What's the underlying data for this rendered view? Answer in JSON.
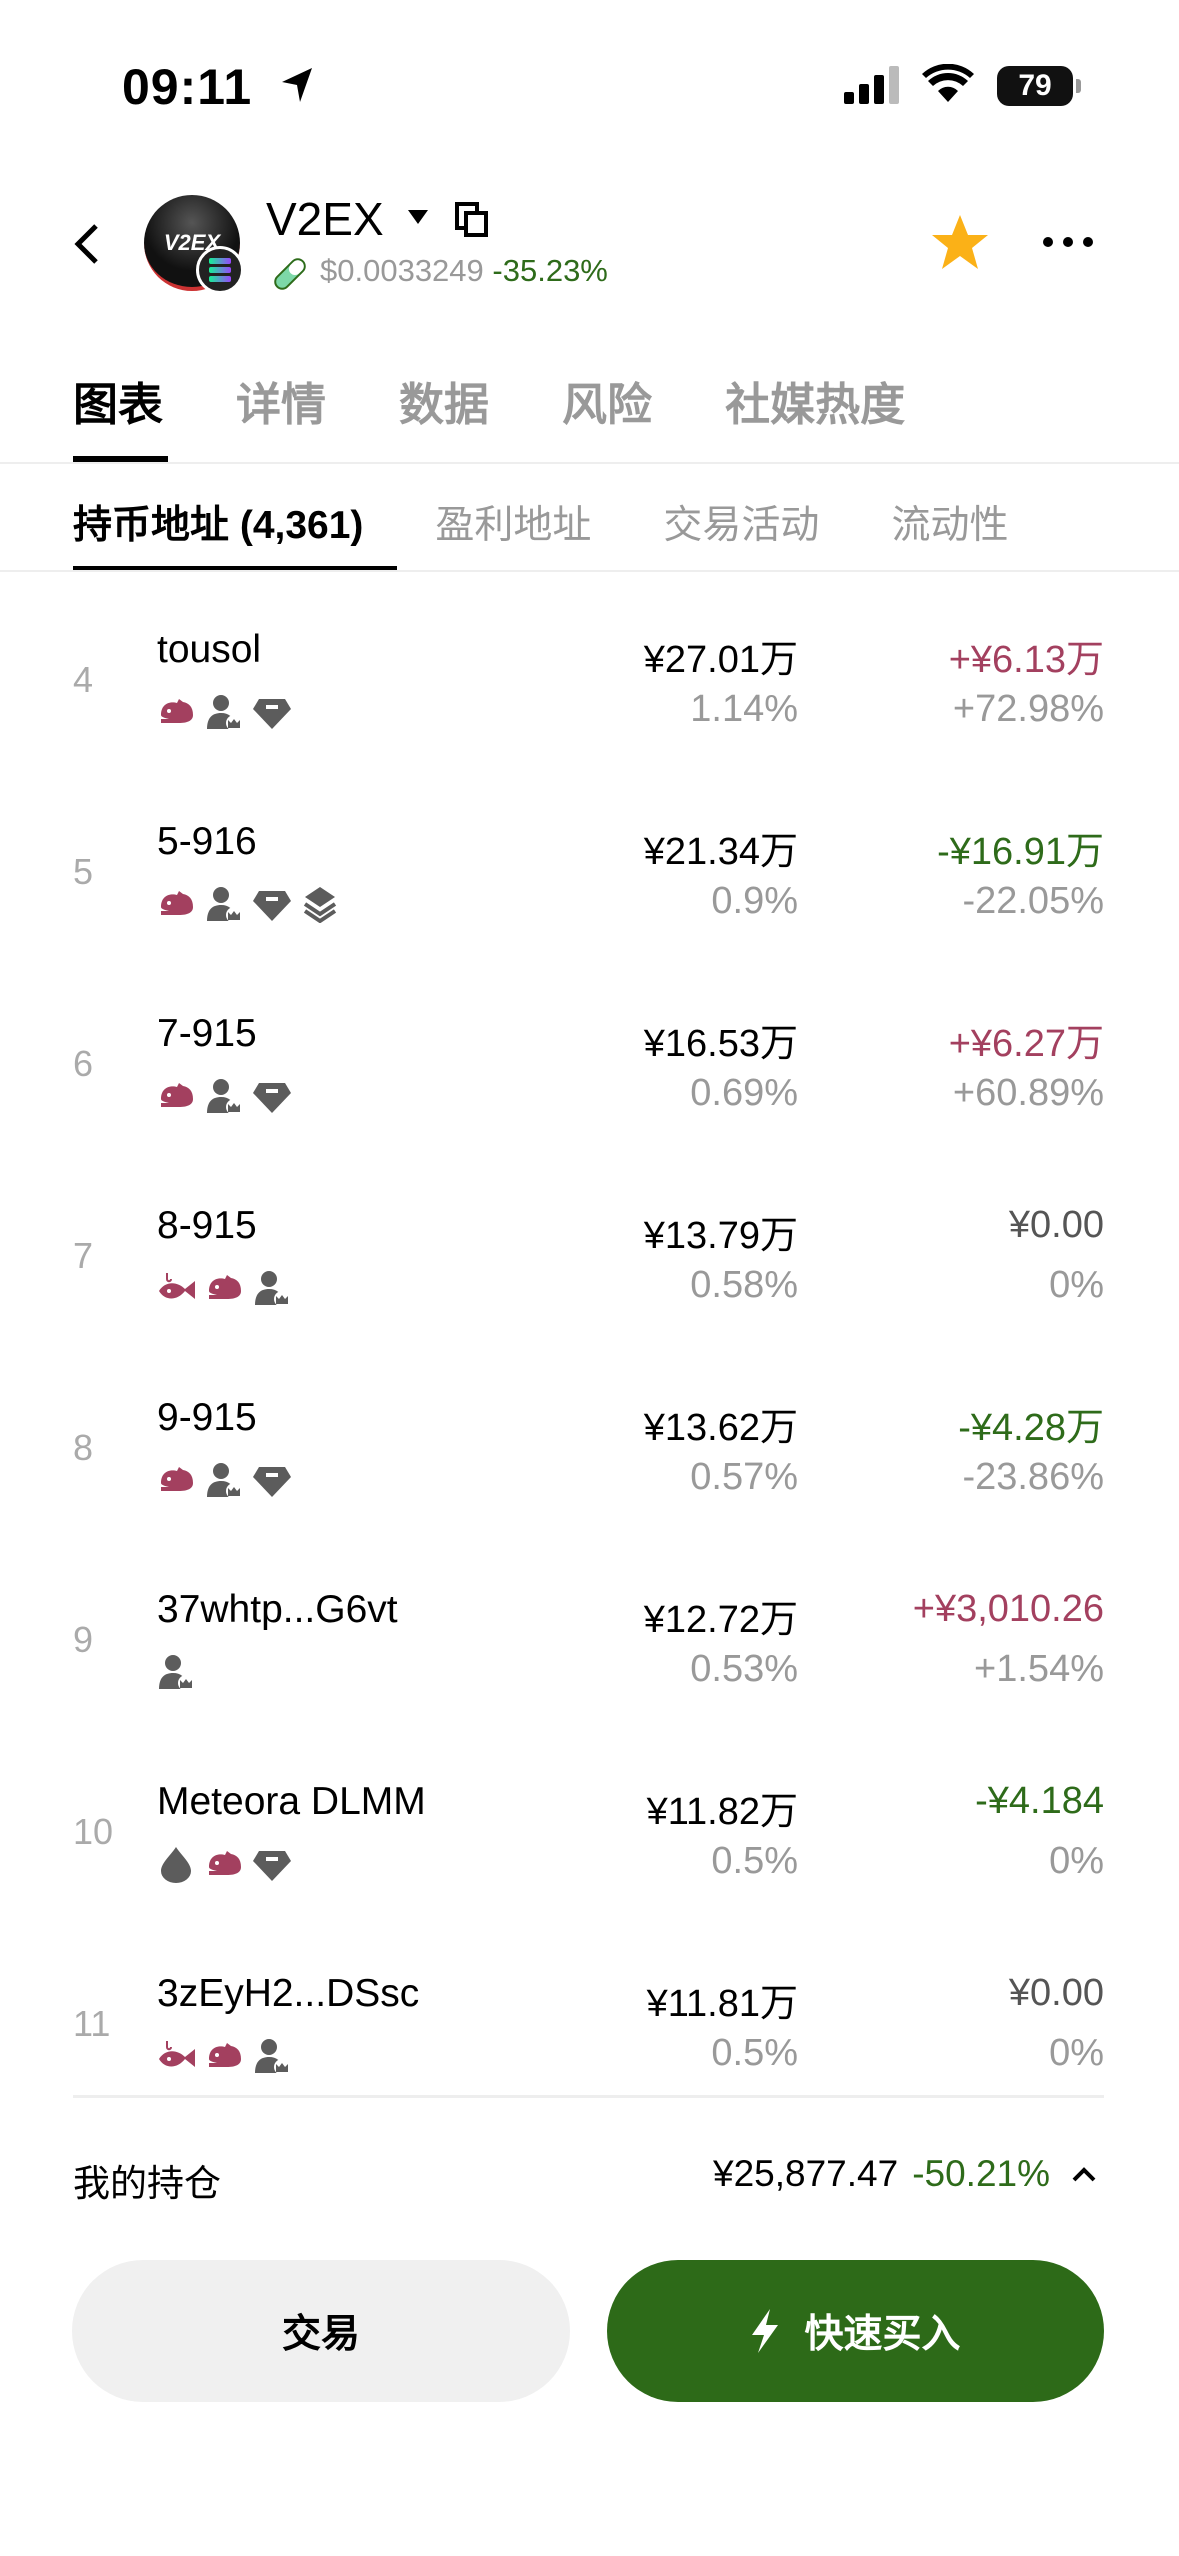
{
  "status": {
    "time": "09:11",
    "battery": "79"
  },
  "header": {
    "token": "V2EX",
    "avatar_text": "V2EX",
    "price": "$0.0033249",
    "change": "-35.23%"
  },
  "tabs": [
    "图表",
    "详情",
    "数据",
    "风险",
    "社媒热度"
  ],
  "subtabs": [
    "持币地址 (4,361)",
    "盈利地址",
    "交易活动",
    "流动性"
  ],
  "colors": {
    "up": "#a3405f",
    "down": "#2e6b1a",
    "buy": "#2d6a18",
    "icon": "#5c5c5c"
  },
  "rows": [
    {
      "rank": "4",
      "name": "tousol",
      "icons": [
        "mouse",
        "user-crown",
        "diamond"
      ],
      "value": "¥27.01万",
      "pct": "1.14%",
      "gain": "+¥6.13万",
      "gain_pct": "+72.98%",
      "trend": "up"
    },
    {
      "rank": "5",
      "name": "5-916",
      "icons": [
        "mouse",
        "user-crown",
        "diamond",
        "layers"
      ],
      "value": "¥21.34万",
      "pct": "0.9%",
      "gain": "-¥16.91万",
      "gain_pct": "-22.05%",
      "trend": "down"
    },
    {
      "rank": "6",
      "name": "7-915",
      "icons": [
        "mouse",
        "user-crown",
        "diamond"
      ],
      "value": "¥16.53万",
      "pct": "0.69%",
      "gain": "+¥6.27万",
      "gain_pct": "+60.89%",
      "trend": "up"
    },
    {
      "rank": "7",
      "name": "8-915",
      "icons": [
        "fish",
        "mouse",
        "user-crown"
      ],
      "value": "¥13.79万",
      "pct": "0.58%",
      "gain": "¥0.00",
      "gain_pct": "0%",
      "trend": "flat"
    },
    {
      "rank": "8",
      "name": "9-915",
      "icons": [
        "mouse",
        "user-crown",
        "diamond"
      ],
      "value": "¥13.62万",
      "pct": "0.57%",
      "gain": "-¥4.28万",
      "gain_pct": "-23.86%",
      "trend": "down"
    },
    {
      "rank": "9",
      "name": "37whtp...G6vt",
      "icons": [
        "user-crown"
      ],
      "value": "¥12.72万",
      "pct": "0.53%",
      "gain": "+¥3,010.26",
      "gain_pct": "+1.54%",
      "trend": "up"
    },
    {
      "rank": "10",
      "name": "Meteora DLMM",
      "icons": [
        "drop",
        "mouse",
        "diamond"
      ],
      "value": "¥11.82万",
      "pct": "0.5%",
      "gain": "-¥4.184",
      "gain_pct": "0%",
      "trend": "down"
    },
    {
      "rank": "11",
      "name": "3zEyH2...DSsc",
      "icons": [
        "fish",
        "mouse",
        "user-crown"
      ],
      "value": "¥11.81万",
      "pct": "0.5%",
      "gain": "¥0.00",
      "gain_pct": "0%",
      "trend": "flat"
    }
  ],
  "position": {
    "label": "我的持仓",
    "value": "¥25,877.47",
    "change": "-50.21%"
  },
  "buttons": {
    "trade": "交易",
    "quick_buy": "快速买入"
  }
}
